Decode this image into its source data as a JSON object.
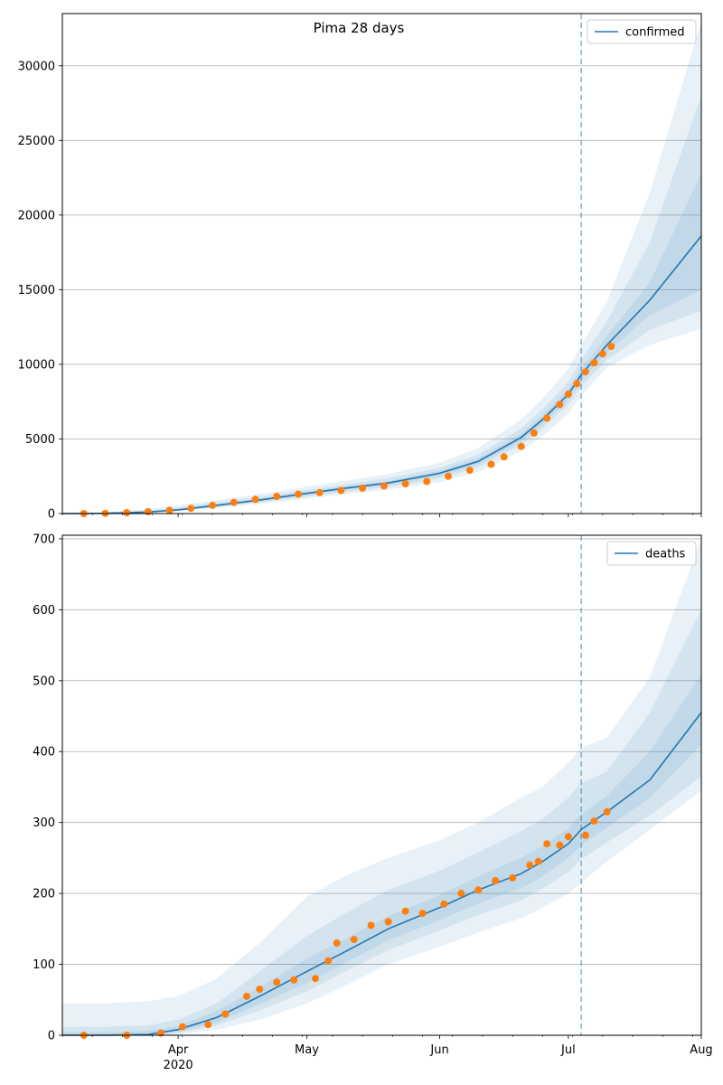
{
  "figure_title": "Pima 28 days",
  "colors": {
    "model_line": "#1f77b4",
    "observed": "#ff7f0e",
    "band": "#1f77b4",
    "forecast_line": "#1f77b4",
    "grid": "#b0b0b0"
  },
  "x_axis": {
    "start": "2020-03-05",
    "end": "2020-08-01",
    "major_ticks": [
      {
        "date": "2020-04-01",
        "label": "Apr",
        "sublabel": "2020"
      },
      {
        "date": "2020-05-01",
        "label": "May",
        "sublabel": ""
      },
      {
        "date": "2020-06-01",
        "label": "Jun",
        "sublabel": ""
      },
      {
        "date": "2020-07-01",
        "label": "Jul",
        "sublabel": ""
      },
      {
        "date": "2020-08-01",
        "label": "Aug",
        "sublabel": ""
      }
    ]
  },
  "chart_data": [
    {
      "type": "line",
      "legend": "confirmed",
      "legend_placement": "upper-right",
      "grid": "y",
      "ylim": [
        0,
        33500
      ],
      "yticks": [
        0,
        5000,
        10000,
        15000,
        20000,
        25000,
        30000
      ],
      "forecast_start": "2020-07-04",
      "model": {
        "x": [
          "2020-03-05",
          "2020-03-15",
          "2020-03-25",
          "2020-04-01",
          "2020-04-10",
          "2020-04-20",
          "2020-05-01",
          "2020-05-10",
          "2020-05-20",
          "2020-06-01",
          "2020-06-10",
          "2020-06-20",
          "2020-06-25",
          "2020-07-01",
          "2020-07-04",
          "2020-07-10",
          "2020-07-20",
          "2020-08-01"
        ],
        "y": [
          0,
          20,
          100,
          250,
          550,
          900,
          1350,
          1700,
          2050,
          2700,
          3500,
          5100,
          6300,
          8000,
          9300,
          11300,
          14300,
          18600
        ],
        "bands": [
          {
            "lower": [
              0,
              10,
              50,
              150,
              350,
              650,
              1000,
              1300,
              1600,
              2100,
              2800,
              4200,
              5200,
              6700,
              7900,
              9800,
              11300,
              12400
            ],
            "upper": [
              0,
              80,
              300,
              550,
              900,
              1300,
              1800,
              2200,
              2650,
              3400,
              4400,
              6300,
              7700,
              9700,
              11300,
              14200,
              21500,
              33000
            ]
          },
          {
            "lower": [
              0,
              15,
              70,
              190,
              430,
              750,
              1130,
              1450,
              1780,
              2350,
              3100,
              4600,
              5700,
              7300,
              8500,
              10300,
              12300,
              13600
            ],
            "upper": [
              0,
              50,
              200,
              420,
              750,
              1120,
              1580,
              1960,
              2380,
              3080,
              3950,
              5700,
              7000,
              8800,
              10300,
              12900,
              18200,
              28000
            ]
          },
          {
            "lower": [
              0,
              18,
              85,
              220,
              490,
              830,
              1240,
              1580,
              1920,
              2520,
              3300,
              4850,
              6000,
              7650,
              8900,
              10800,
              13300,
              15000
            ],
            "upper": [
              0,
              30,
              150,
              330,
              650,
              1000,
              1460,
              1820,
              2180,
              2860,
              3700,
              5350,
              6600,
              8350,
              9700,
              11900,
              15500,
              22800
            ]
          }
        ]
      },
      "observed": {
        "x": [
          "2020-03-10",
          "2020-03-15",
          "2020-03-20",
          "2020-03-25",
          "2020-03-30",
          "2020-04-04",
          "2020-04-09",
          "2020-04-14",
          "2020-04-19",
          "2020-04-24",
          "2020-04-29",
          "2020-05-04",
          "2020-05-09",
          "2020-05-14",
          "2020-05-19",
          "2020-05-24",
          "2020-05-29",
          "2020-06-03",
          "2020-06-08",
          "2020-06-13",
          "2020-06-16",
          "2020-06-20",
          "2020-06-23",
          "2020-06-26",
          "2020-06-29",
          "2020-07-01",
          "2020-07-03",
          "2020-07-05",
          "2020-07-07",
          "2020-07-09",
          "2020-07-11"
        ],
        "y": [
          0,
          20,
          60,
          130,
          220,
          350,
          550,
          750,
          950,
          1150,
          1300,
          1400,
          1550,
          1700,
          1850,
          2000,
          2150,
          2500,
          2900,
          3300,
          3800,
          4500,
          5400,
          6400,
          7300,
          8000,
          8700,
          9500,
          10100,
          10700,
          11200
        ]
      }
    },
    {
      "type": "line",
      "legend": "deaths",
      "legend_placement": "upper-right",
      "grid": "y",
      "ylim": [
        0,
        705
      ],
      "yticks": [
        0,
        100,
        200,
        300,
        400,
        500,
        600,
        700
      ],
      "forecast_start": "2020-07-04",
      "model": {
        "x": [
          "2020-03-05",
          "2020-03-15",
          "2020-03-25",
          "2020-04-01",
          "2020-04-10",
          "2020-04-20",
          "2020-05-01",
          "2020-05-10",
          "2020-05-20",
          "2020-06-01",
          "2020-06-10",
          "2020-06-20",
          "2020-06-25",
          "2020-07-01",
          "2020-07-04",
          "2020-07-10",
          "2020-07-20",
          "2020-08-01"
        ],
        "y": [
          0,
          0,
          1,
          8,
          25,
          55,
          90,
          118,
          150,
          180,
          205,
          228,
          245,
          270,
          290,
          315,
          360,
          455
        ],
        "bands": [
          {
            "lower": [
              0,
              0,
              0,
              1,
              8,
              22,
              45,
              70,
              100,
              125,
              145,
              165,
              180,
              200,
              215,
              245,
              290,
              345
            ],
            "upper": [
              45,
              45,
              48,
              55,
              80,
              130,
              195,
              225,
              250,
              275,
              300,
              335,
              350,
              385,
              405,
              420,
              505,
              700
            ]
          },
          {
            "lower": [
              0,
              0,
              0,
              3,
              14,
              35,
              62,
              90,
              120,
              148,
              170,
              190,
              207,
              230,
              248,
              272,
              310,
              365
            ],
            "upper": [
              12,
              12,
              14,
              22,
              45,
              90,
              140,
              172,
              205,
              232,
              258,
              288,
              305,
              335,
              355,
              372,
              455,
              600
            ]
          },
          {
            "lower": [
              0,
              0,
              0,
              5,
              18,
              44,
              74,
              102,
              134,
              162,
              186,
              207,
              224,
              250,
              268,
              293,
              335,
              410
            ],
            "upper": [
              4,
              4,
              6,
              13,
              34,
              68,
              108,
              136,
              168,
              198,
              224,
              250,
              267,
              292,
              312,
              338,
              400,
              510
            ]
          }
        ]
      },
      "observed": {
        "x": [
          "2020-03-10",
          "2020-03-20",
          "2020-03-28",
          "2020-04-02",
          "2020-04-08",
          "2020-04-12",
          "2020-04-17",
          "2020-04-20",
          "2020-04-24",
          "2020-04-28",
          "2020-05-03",
          "2020-05-06",
          "2020-05-08",
          "2020-05-12",
          "2020-05-16",
          "2020-05-20",
          "2020-05-24",
          "2020-05-28",
          "2020-06-02",
          "2020-06-06",
          "2020-06-10",
          "2020-06-14",
          "2020-06-18",
          "2020-06-22",
          "2020-06-24",
          "2020-06-26",
          "2020-06-29",
          "2020-07-01",
          "2020-07-05",
          "2020-07-07",
          "2020-07-10"
        ],
        "y": [
          0,
          0,
          3,
          12,
          15,
          30,
          55,
          65,
          75,
          78,
          80,
          105,
          130,
          135,
          155,
          160,
          175,
          172,
          185,
          200,
          205,
          218,
          222,
          240,
          245,
          270,
          268,
          280,
          282,
          302,
          315
        ]
      }
    }
  ]
}
